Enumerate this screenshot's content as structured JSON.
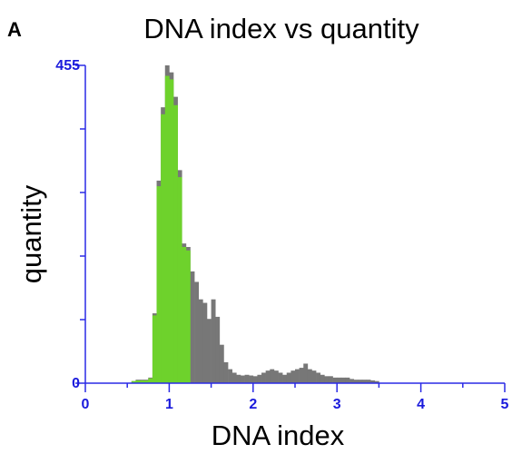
{
  "panel_label": "A",
  "chart_data": {
    "type": "bar",
    "title": "DNA index vs quantity",
    "xlabel": "DNA index",
    "ylabel": "quantity",
    "xlim": [
      0,
      5
    ],
    "ylim": [
      0,
      455
    ],
    "x_ticks": [
      0,
      1,
      2,
      3,
      4,
      5
    ],
    "y_tick_labels": [
      "0",
      "455"
    ],
    "y_minor_ticks": [
      91,
      182,
      273,
      364
    ],
    "bin_width": 0.05,
    "grid": false,
    "legend": "none",
    "colors": {
      "highlighted": "#6ed22c",
      "other": "#777777",
      "axis": "#2a2ae6",
      "tick_text": "#1a1adc"
    },
    "series": [
      {
        "color": "#777777",
        "x": [
          0.55,
          0.6,
          0.65,
          0.7,
          0.75,
          0.8,
          0.85,
          0.9,
          0.95,
          1.0,
          1.05,
          1.1,
          1.15,
          1.2,
          1.25,
          1.3,
          1.35,
          1.4,
          1.45,
          1.5,
          1.55,
          1.6,
          1.65,
          1.7,
          1.75,
          1.8,
          1.85,
          1.9,
          1.95,
          2.0,
          2.05,
          2.1,
          2.15,
          2.2,
          2.25,
          2.3,
          2.35,
          2.4,
          2.45,
          2.5,
          2.55,
          2.6,
          2.65,
          2.7,
          2.75,
          2.8,
          2.85,
          2.9,
          2.95,
          3.0,
          3.05,
          3.1,
          3.15,
          3.2,
          3.25,
          3.3,
          3.35,
          3.4,
          3.45
        ],
        "values": [
          3,
          5,
          5,
          5,
          8,
          100,
          290,
          395,
          455,
          445,
          410,
          305,
          200,
          195,
          160,
          145,
          120,
          115,
          92,
          120,
          95,
          55,
          30,
          20,
          15,
          12,
          11,
          12,
          11,
          10,
          12,
          15,
          18,
          20,
          18,
          15,
          12,
          15,
          18,
          20,
          22,
          28,
          20,
          18,
          15,
          12,
          10,
          10,
          8,
          8,
          8,
          8,
          6,
          5,
          5,
          5,
          5,
          4,
          3
        ]
      },
      {
        "color": "#6ed22c",
        "x": [
          0.55,
          0.6,
          0.65,
          0.7,
          0.75,
          0.8,
          0.85,
          0.9,
          0.95,
          1.0,
          1.05,
          1.1,
          1.15,
          1.2
        ],
        "values": [
          3,
          4,
          4,
          4,
          7,
          97,
          282,
          385,
          440,
          435,
          398,
          295,
          195,
          190
        ]
      }
    ]
  }
}
